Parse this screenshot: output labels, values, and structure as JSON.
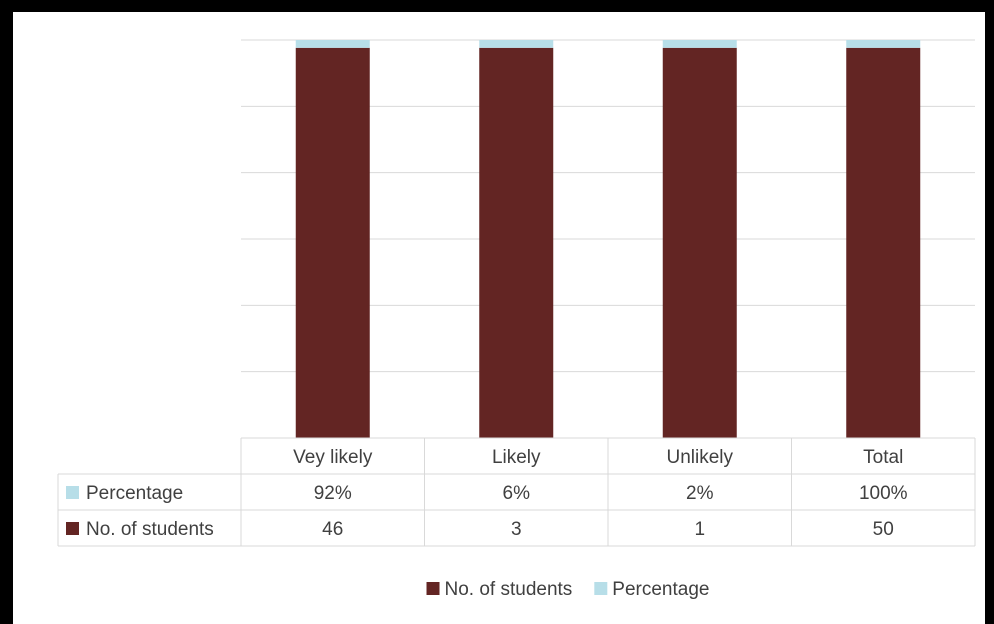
{
  "chart_data": {
    "type": "bar",
    "stacked": true,
    "percent_stacked": true,
    "categories": [
      "Vey likely",
      "Likely",
      "Unlikely",
      "Total"
    ],
    "series": [
      {
        "name": "No. of students",
        "color": "#632523",
        "values": [
          46,
          3,
          1,
          50
        ]
      },
      {
        "name": "Percentage",
        "color": "#B7DEE8",
        "values": [
          0.92,
          0.06,
          0.02,
          1.0
        ]
      }
    ],
    "data_table": {
      "header": [
        "Vey likely",
        "Likely",
        "Unlikely",
        "Total"
      ],
      "rows": [
        {
          "label": "Percentage",
          "color": "#B7DEE8",
          "cells": [
            "92%",
            "6%",
            "2%",
            "100%"
          ]
        },
        {
          "label": "No. of students",
          "color": "#632523",
          "cells": [
            "46",
            "3",
            "1",
            "50"
          ]
        }
      ]
    },
    "legend": {
      "position": "bottom",
      "items": [
        {
          "label": "No. of students",
          "color": "#632523"
        },
        {
          "label": "Percentage",
          "color": "#B7DEE8"
        }
      ]
    },
    "grid": true,
    "title": "",
    "xlabel": "",
    "ylabel": ""
  }
}
